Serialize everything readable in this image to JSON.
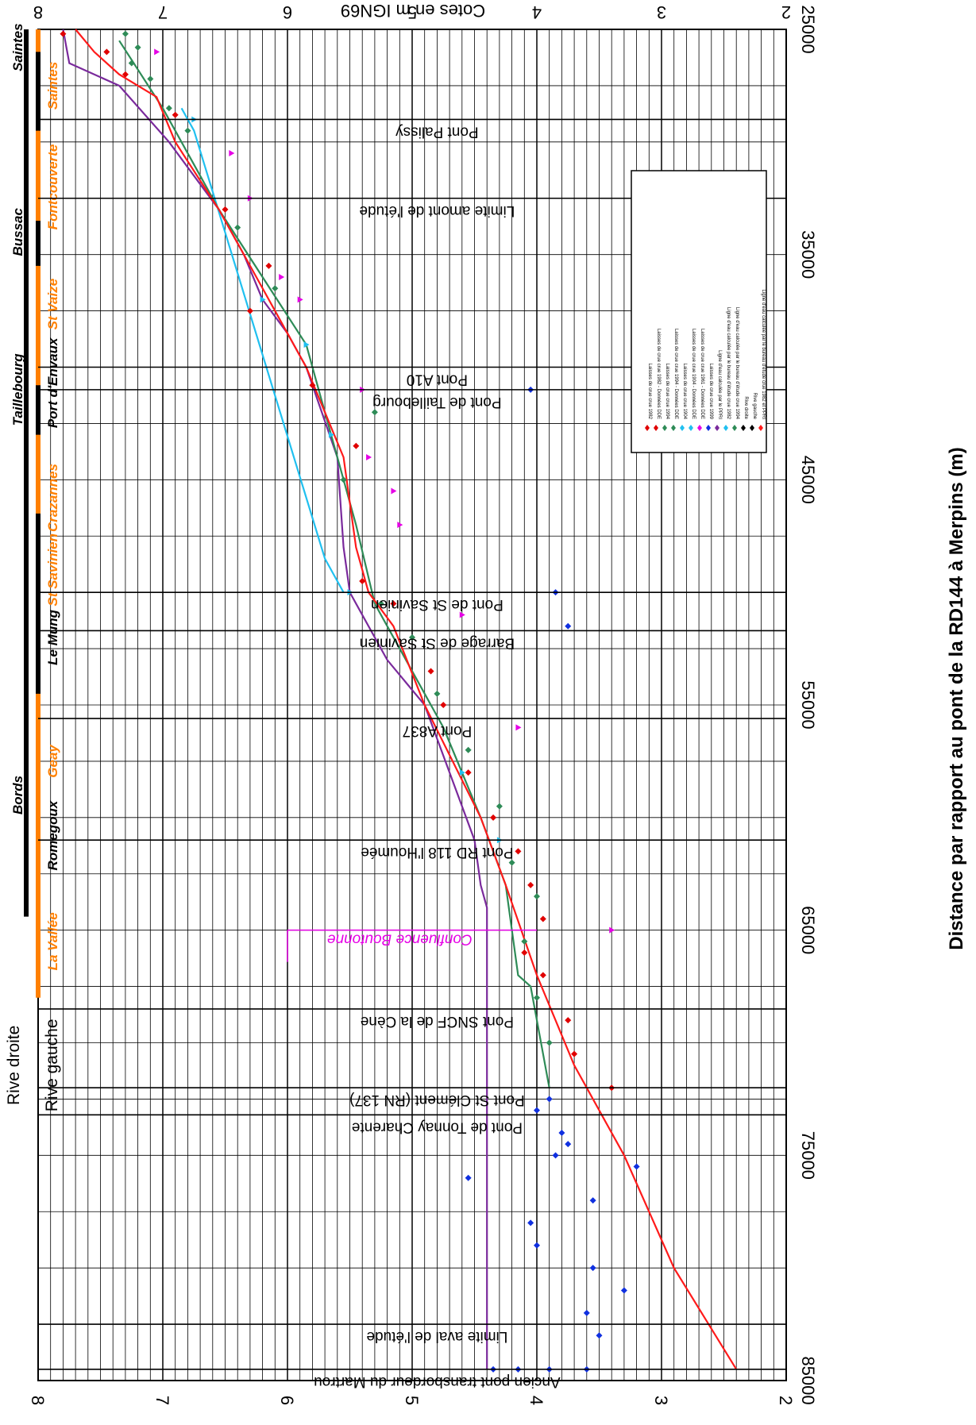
{
  "chart_data": {
    "type": "line",
    "x_axis": {
      "label": "Distance par rapport au pont de la RD144 à Merpins (m)",
      "range": [
        25000,
        85000
      ],
      "ticks": [
        25000,
        35000,
        45000,
        55000,
        65000,
        75000,
        85000
      ]
    },
    "y_axis": {
      "label": "Cotes en m IGN69",
      "range": [
        2,
        8
      ],
      "ticks": [
        2,
        3,
        4,
        5,
        6,
        7,
        8
      ]
    },
    "grid": true,
    "legend_placement": "top-right",
    "legend": [
      "Laisses de crue crue 1982",
      "Laisses de crue crue 1982 - Données DDE",
      "Laisses de crue crue 1994",
      "Laisses de crue crue 1994 - Données DDE",
      "Laisses de crue crue 1904",
      "Laisses de crue crue 1904 - Données DDE",
      "Laisses de crue crue 1961 - Données DDE",
      "Laisses de crue crue 1999",
      "Ligne d'eau calculée par le PPRI",
      "Ligne d'eau calculée par le bureau d'étude crue 1982",
      "Ligne d'eau calculée par le bureau d'étude crue 1994",
      "Rive droite",
      "Rive gauche",
      "Ligne d'eau calculée par le bureau d'étude crue 1982 et PPRI"
    ],
    "series": [
      {
        "name": "Ligne d'eau calculée par le PPRI",
        "color": "#7a2a9c",
        "kind": "line",
        "x": [
          25000,
          26500,
          27500,
          30000,
          33000,
          35000,
          37000,
          38500,
          40000,
          44000,
          48000,
          50000,
          53000,
          55000,
          58000,
          61000,
          63000,
          64000,
          84500
        ],
        "y": [
          7.8,
          7.75,
          7.35,
          6.95,
          6.55,
          6.35,
          6.2,
          6.0,
          5.85,
          5.6,
          5.55,
          5.5,
          5.2,
          4.9,
          4.7,
          4.5,
          4.45,
          4.4,
          4.4
        ]
      },
      {
        "name": "Ligne d'eau calculée par le bureau d'étude crue 1982",
        "color": "#20c0f0",
        "kind": "line",
        "x": [
          28500,
          29500,
          48500,
          50000
        ],
        "y": [
          6.85,
          6.75,
          5.7,
          5.55
        ]
      },
      {
        "name": "Ligne d'eau calculée par le bureau d'étude crue 1994",
        "color": "#2e8b57",
        "kind": "line",
        "x": [
          25500,
          28500,
          33000,
          36000,
          39000,
          42000,
          47000,
          50500,
          53000,
          56000,
          60000,
          63000,
          67000,
          67500,
          72000
        ],
        "y": [
          7.35,
          7.0,
          6.55,
          6.2,
          5.85,
          5.7,
          5.45,
          5.3,
          5.05,
          4.75,
          4.45,
          4.25,
          4.15,
          4.05,
          3.9
        ]
      },
      {
        "name": "Ligne d'eau calculée par le bureau d'étude crue 1982 et PPRI",
        "color": "#ff1a1a",
        "kind": "line",
        "x": [
          25000,
          26000,
          27000,
          28000,
          30000,
          33000,
          36000,
          38000,
          40000,
          44000,
          48000,
          50000,
          51500,
          55000,
          60000,
          63000,
          67000,
          71000,
          72000,
          75000,
          80000,
          84500
        ],
        "y": [
          7.7,
          7.55,
          7.35,
          7.05,
          6.9,
          6.55,
          6.25,
          6.05,
          5.85,
          5.55,
          5.45,
          5.35,
          5.15,
          4.9,
          4.45,
          4.25,
          4.0,
          3.7,
          3.6,
          3.3,
          2.9,
          2.4
        ]
      },
      {
        "name": "Laisses de crue crue 1982",
        "color": "#e00000",
        "kind": "diamond",
        "x": [
          25200,
          26000,
          27000,
          28800,
          33000,
          35500,
          37500,
          40800,
          43500,
          49500,
          50500,
          53500,
          55000,
          58000,
          60000,
          61500,
          63000,
          64500,
          66000,
          67000,
          69000,
          70500,
          72000
        ],
        "y": [
          7.8,
          7.45,
          7.3,
          6.9,
          6.5,
          6.15,
          6.3,
          5.8,
          5.45,
          5.4,
          5.15,
          4.85,
          4.75,
          4.55,
          4.35,
          4.15,
          4.05,
          3.95,
          4.1,
          3.95,
          3.75,
          3.7,
          3.4
        ]
      },
      {
        "name": "Laisses de crue crue 1994",
        "color": "#2e8b57",
        "kind": "diamond",
        "x": [
          25200,
          25800,
          26500,
          27200,
          28500,
          29500,
          33800,
          36500,
          42000,
          45000,
          50500,
          52000,
          54500,
          57000,
          59500,
          62000,
          63500,
          65500,
          68000,
          70000
        ],
        "y": [
          7.3,
          7.2,
          7.25,
          7.1,
          6.95,
          6.8,
          6.4,
          6.1,
          5.3,
          5.55,
          5.25,
          5.0,
          4.8,
          4.55,
          4.3,
          4.2,
          4.0,
          4.1,
          4.0,
          3.9
        ]
      },
      {
        "name": "Laisses de crue crue 1904",
        "color": "#20c0f0",
        "kind": "triangle",
        "x": [
          29000,
          37000,
          39000,
          43000,
          50000,
          58000,
          61000
        ],
        "y": [
          6.75,
          6.2,
          5.85,
          5.65,
          5.5,
          4.6,
          4.3
        ]
      },
      {
        "name": "Laisses de crue crue 1961 - Données DDE",
        "color": "#e600e6",
        "kind": "triangle",
        "x": [
          26000,
          30500,
          32500,
          36000,
          37000,
          41000,
          44000,
          45500,
          47000,
          51000,
          56000,
          65000
        ],
        "y": [
          7.05,
          6.45,
          6.3,
          6.05,
          5.9,
          5.4,
          5.35,
          5.15,
          5.1,
          4.6,
          4.15,
          3.4
        ]
      },
      {
        "name": "Laisses de crue crue 1999",
        "color": "#1030e0",
        "kind": "diamond",
        "x": [
          41000,
          50000,
          51500,
          72500,
          73000,
          74000,
          74500,
          75000,
          75500,
          76000,
          77000,
          78000,
          79000,
          80000,
          81000,
          82000,
          83000,
          84500,
          84500,
          84500,
          84500
        ],
        "y": [
          4.05,
          3.85,
          3.75,
          3.9,
          4.0,
          3.8,
          3.75,
          3.85,
          3.2,
          4.55,
          3.55,
          4.05,
          4.0,
          3.55,
          3.3,
          3.6,
          3.5,
          4.35,
          4.15,
          3.9,
          3.6
        ]
      }
    ],
    "annotations": [
      {
        "text": "Pont Palissy",
        "x": 29000
      },
      {
        "text": "Limite amont de l'étude",
        "x": 32500
      },
      {
        "text": "Pont A10",
        "x": 40000
      },
      {
        "text": "Pont de Taillebourg",
        "x": 41000
      },
      {
        "text": "Pont de St Savinien",
        "x": 50000
      },
      {
        "text": "Barrage de St Savinien",
        "x": 51700
      },
      {
        "text": "Pont A837",
        "x": 55600
      },
      {
        "text": "Pont RD 118 l'Houmée",
        "x": 61000
      },
      {
        "text": "Confluence Boutonne",
        "x": 65000
      },
      {
        "text": "Pont SNCF de la Cène",
        "x": 68500
      },
      {
        "text": "Pont St Clément (RN 137)",
        "x": 72000
      },
      {
        "text": "Pont de Tonnay Charente",
        "x": 73200
      },
      {
        "text": "Limite aval de l'étude",
        "x": 82500
      },
      {
        "text": "Ancien pont transbordeur du Martrou",
        "x": 84500
      }
    ]
  },
  "localities": {
    "right_bank": [
      "Saintes",
      "Bussac",
      "Taillebourg",
      "Bords"
    ],
    "left_bank": [
      "Saintes",
      "Fontcouverte",
      "St Vaize",
      "Port d'Envaux",
      "Crazannes",
      "St Savinien",
      "Le Mung",
      "Geay",
      "Romegoux",
      "La Vallée"
    ]
  },
  "banks": {
    "right": "Rive droite",
    "left": "Rive gauche"
  }
}
